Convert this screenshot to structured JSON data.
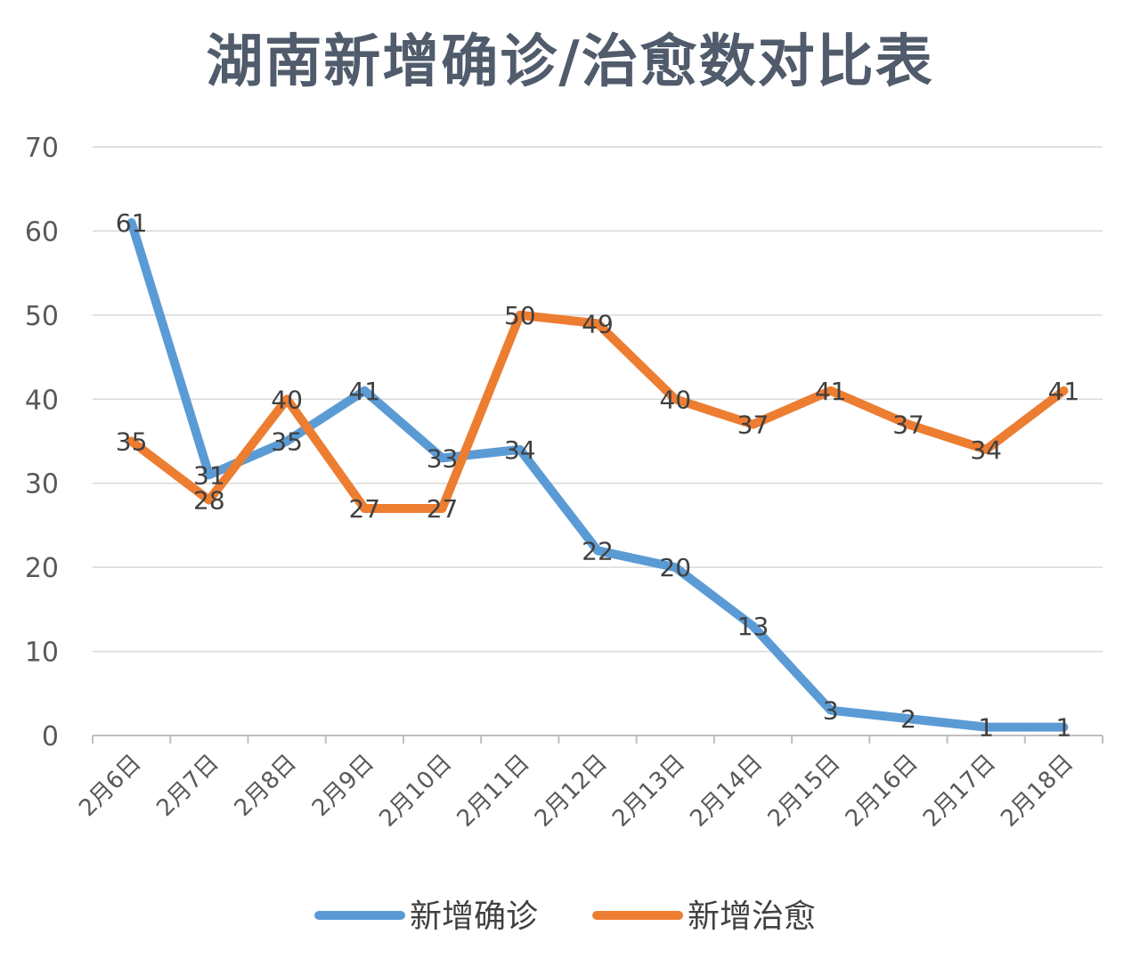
{
  "chart_data": {
    "type": "line",
    "title": "湖南新增确诊/治愈数对比表",
    "categories": [
      "2月6日",
      "2月7日",
      "2月8日",
      "2月9日",
      "2月10日",
      "2月11日",
      "2月12日",
      "2月13日",
      "2月14日",
      "2月15日",
      "2月16日",
      "2月17日",
      "2月18日"
    ],
    "series": [
      {
        "name": "新增确诊",
        "color": "#5b9bd5",
        "values": [
          61,
          31,
          35,
          41,
          33,
          34,
          22,
          20,
          13,
          3,
          2,
          1,
          1
        ]
      },
      {
        "name": "新增治愈",
        "color": "#ed7d31",
        "values": [
          35,
          28,
          40,
          27,
          27,
          50,
          49,
          40,
          37,
          41,
          37,
          34,
          41
        ]
      }
    ],
    "ylim": [
      0,
      70
    ],
    "yticks": [
      "0",
      "10",
      "20",
      "30",
      "40",
      "50",
      "60",
      "70"
    ],
    "grid": true,
    "legend": "bottom",
    "data_labels": true
  }
}
